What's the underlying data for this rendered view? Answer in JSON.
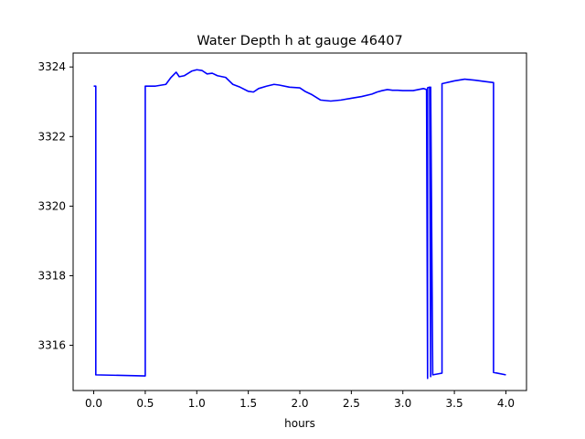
{
  "chart_data": {
    "type": "line",
    "title": "Water Depth h at gauge 46407",
    "xlabel": "hours",
    "ylabel": "",
    "xlim": [
      -0.2,
      4.2
    ],
    "ylim": [
      3314.7,
      3324.4
    ],
    "xticks": [
      0.0,
      0.5,
      1.0,
      1.5,
      2.0,
      2.5,
      3.0,
      3.5,
      4.0
    ],
    "xtick_labels": [
      "0.0",
      "0.5",
      "1.0",
      "1.5",
      "2.0",
      "2.5",
      "3.0",
      "3.5",
      "4.0"
    ],
    "yticks": [
      3316,
      3318,
      3320,
      3322,
      3324
    ],
    "ytick_labels": [
      "3316",
      "3318",
      "3320",
      "3322",
      "3324"
    ],
    "grid": false,
    "series": [
      {
        "color": "#0000ff",
        "x": [
          0.0,
          0.02,
          0.02,
          0.5,
          0.5,
          0.6,
          0.7,
          0.75,
          0.8,
          0.83,
          0.88,
          0.95,
          1.0,
          1.05,
          1.1,
          1.15,
          1.2,
          1.28,
          1.35,
          1.42,
          1.5,
          1.55,
          1.6,
          1.68,
          1.75,
          1.8,
          1.9,
          2.0,
          2.05,
          2.12,
          2.2,
          2.3,
          2.4,
          2.5,
          2.6,
          2.7,
          2.75,
          2.8,
          2.85,
          2.9,
          2.95,
          3.0,
          3.05,
          3.1,
          3.15,
          3.2,
          3.23,
          3.24,
          3.24,
          3.26,
          3.27,
          3.27,
          3.29,
          3.38,
          3.38,
          3.5,
          3.6,
          3.7,
          3.8,
          3.88,
          3.88,
          4.0
        ],
        "y": [
          3323.45,
          3323.45,
          3315.15,
          3315.12,
          3323.45,
          3323.45,
          3323.5,
          3323.7,
          3323.85,
          3323.72,
          3323.75,
          3323.88,
          3323.92,
          3323.9,
          3323.8,
          3323.82,
          3323.75,
          3323.7,
          3323.5,
          3323.42,
          3323.3,
          3323.28,
          3323.38,
          3323.45,
          3323.5,
          3323.48,
          3323.42,
          3323.4,
          3323.3,
          3323.2,
          3323.05,
          3323.02,
          3323.05,
          3323.1,
          3323.15,
          3323.22,
          3323.28,
          3323.32,
          3323.35,
          3323.33,
          3323.33,
          3323.32,
          3323.32,
          3323.32,
          3323.35,
          3323.38,
          3323.35,
          3315.05,
          3323.4,
          3323.42,
          3315.1,
          3323.42,
          3315.15,
          3315.2,
          3323.52,
          3323.6,
          3323.65,
          3323.62,
          3323.58,
          3323.55,
          3315.22,
          3315.15
        ]
      }
    ]
  }
}
